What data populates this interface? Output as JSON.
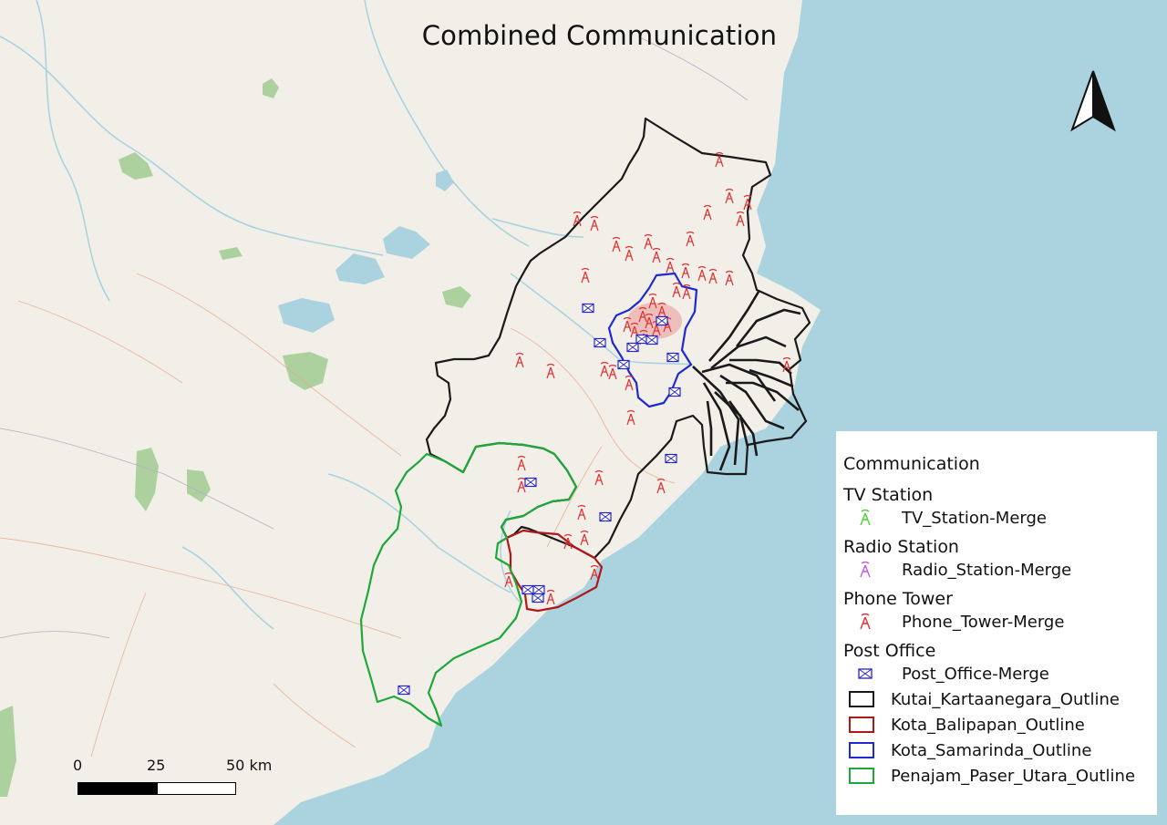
{
  "title": "Combined Communication",
  "scale": {
    "labels": [
      "0",
      "25",
      "50 km"
    ]
  },
  "legend": {
    "heading": "Communication",
    "groups": [
      {
        "name": "TV Station",
        "item": "TV_Station-Merge",
        "color": "#4cd137",
        "icon": "tower-icon"
      },
      {
        "name": "Radio Station",
        "item": "Radio_Station-Merge",
        "color": "#c05ae0",
        "icon": "tower-icon"
      },
      {
        "name": "Phone Tower",
        "item": "Phone_Tower-Merge",
        "color": "#e03131",
        "icon": "tower-icon"
      },
      {
        "name": "Post Office",
        "item": "Post_Office-Merge",
        "color": "#2424d0",
        "icon": "envelope-icon"
      }
    ],
    "outlines": [
      {
        "label": "Kutai_Kartaanegara_Outline",
        "color": "#1a1a1a"
      },
      {
        "label": "Kota_Balipapan_Outline",
        "color": "#b01818"
      },
      {
        "label": "Kota_Samarinda_Outline",
        "color": "#1d2ad0"
      },
      {
        "label": "Penajam_Paser_Utara_Outline",
        "color": "#1fa83a"
      }
    ]
  },
  "colors": {
    "sea": "#aad3df",
    "land": "#f2efe9",
    "forest": "#add19e",
    "water": "#aad3df"
  }
}
